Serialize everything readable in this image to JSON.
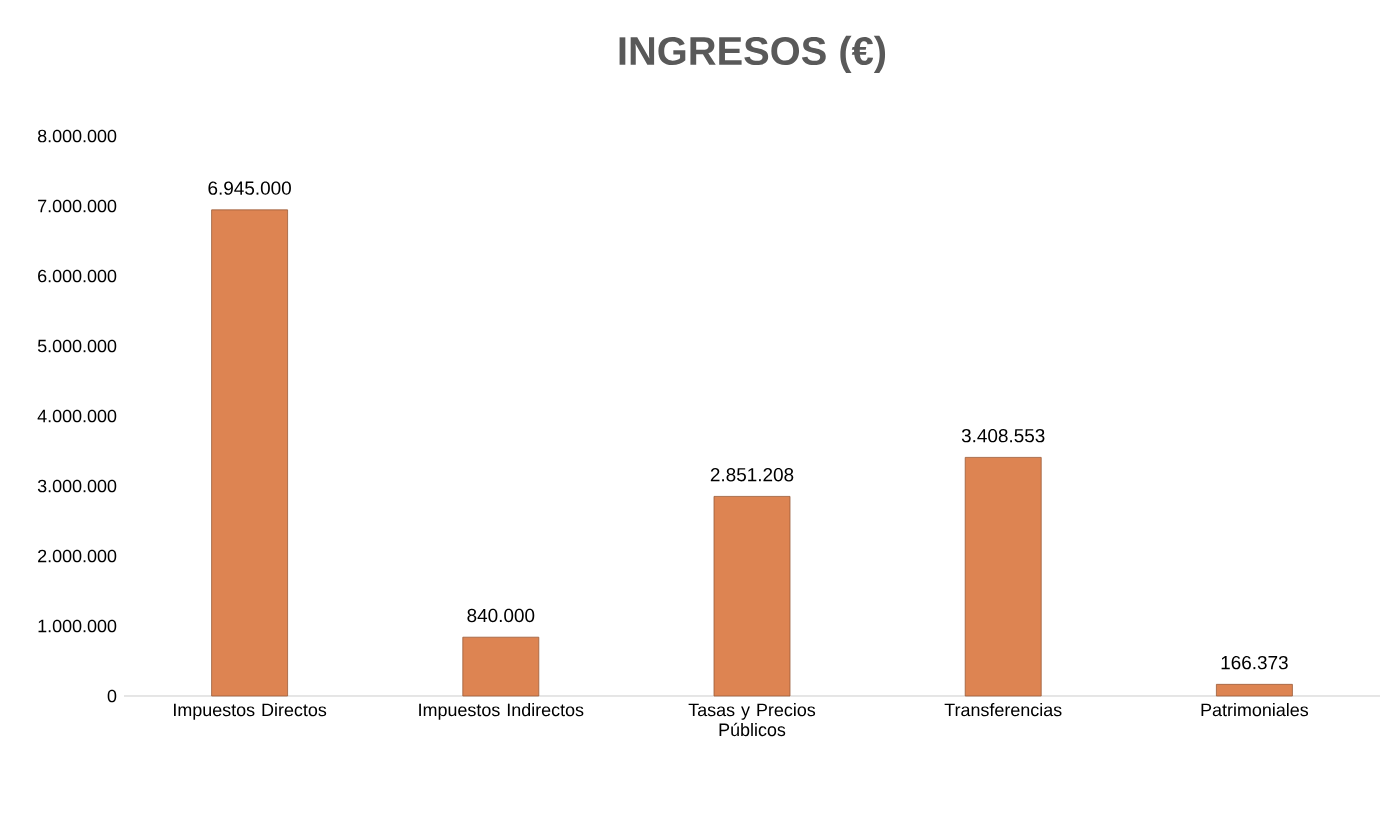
{
  "chart_data": {
    "type": "bar",
    "title": "INGRESOS (€)",
    "categories": [
      "Impuestos Directos",
      "Impuestos Indirectos",
      "Tasas y Precios Públicos",
      "Transferencias",
      "Patrimoniales"
    ],
    "values": [
      6945000,
      840000,
      2851208,
      3408553,
      166373
    ],
    "value_labels": [
      "6.945.000",
      "840.000",
      "2.851.208",
      "3.408.553",
      "166.373"
    ],
    "color": "#dd8452",
    "ylim": [
      0,
      8000000
    ],
    "yticks": [
      {
        "value": 0,
        "label": "0"
      },
      {
        "value": 1000000,
        "label": "1.000.000"
      },
      {
        "value": 2000000,
        "label": "2.000.000"
      },
      {
        "value": 3000000,
        "label": "3.000.000"
      },
      {
        "value": 4000000,
        "label": "4.000.000"
      },
      {
        "value": 5000000,
        "label": "5.000.000"
      },
      {
        "value": 6000000,
        "label": "6.000.000"
      },
      {
        "value": 7000000,
        "label": "7.000.000"
      },
      {
        "value": 8000000,
        "label": "8.000.000"
      }
    ],
    "grid": false
  }
}
